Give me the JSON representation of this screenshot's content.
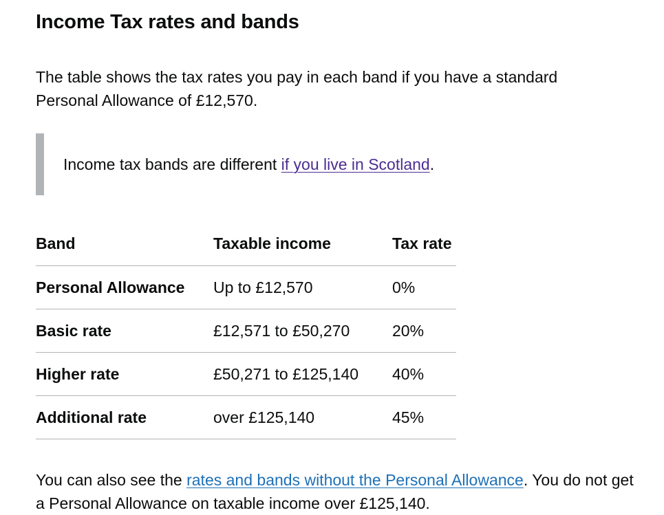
{
  "heading": "Income Tax rates and bands",
  "intro": "The table shows the tax rates you pay in each band if you have a standard Personal Allowance of £12,570.",
  "inset": {
    "text_before": "Income tax bands are different ",
    "link_text": "if you live in Scotland",
    "text_after": "."
  },
  "table": {
    "headers": [
      "Band",
      "Taxable income",
      "Tax rate"
    ],
    "rows": [
      {
        "band": "Personal Allowance",
        "income": "Up to £12,570",
        "rate": "0%"
      },
      {
        "band": "Basic rate",
        "income": "£12,571 to £50,270",
        "rate": "20%"
      },
      {
        "band": "Higher rate",
        "income": "£50,271 to £125,140",
        "rate": "40%"
      },
      {
        "band": "Additional rate",
        "income": "over £125,140",
        "rate": "45%"
      }
    ]
  },
  "outro": {
    "text_before": "You can also see the ",
    "link_text": "rates and bands without the Personal Allowance",
    "text_after": ". You do not get a Personal Allowance on taxable income over £125,140."
  },
  "colors": {
    "text": "#0b0c0c",
    "link": "#1d70b8",
    "visited_link": "#4c2c92",
    "border": "#b1b4b6"
  }
}
